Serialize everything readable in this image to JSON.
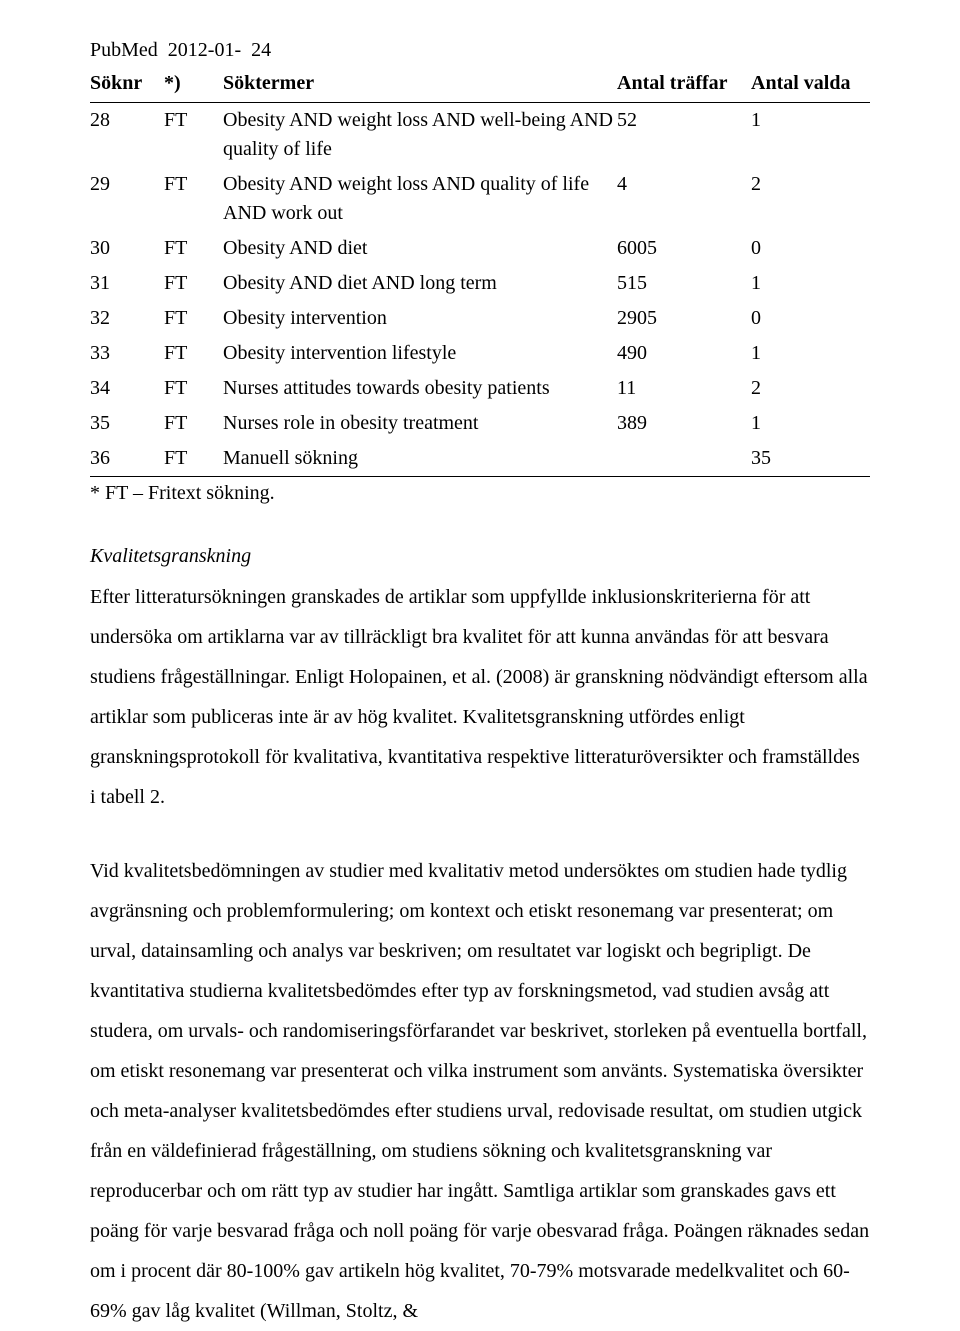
{
  "header": {
    "db": "PubMed",
    "date": "2012-01-",
    "day": "24"
  },
  "columns": {
    "soknr": "Söknr",
    "mark": "*)",
    "terms": "Söktermer",
    "hits": "Antal träffar",
    "sel": "Antal valda"
  },
  "rows": [
    {
      "n": "28",
      "m": "FT",
      "t": "Obesity AND weight loss AND well-being AND quality of life",
      "h": "52",
      "v": "1"
    },
    {
      "n": "29",
      "m": "FT",
      "t": "Obesity AND weight loss AND quality of life AND work out",
      "h": "4",
      "v": "2"
    },
    {
      "n": "30",
      "m": "FT",
      "t": "Obesity AND diet",
      "h": "6005",
      "v": "0"
    },
    {
      "n": "31",
      "m": "FT",
      "t": "Obesity AND diet AND long term",
      "h": "515",
      "v": "1"
    },
    {
      "n": "32",
      "m": "FT",
      "t": "Obesity intervention",
      "h": "2905",
      "v": "0"
    },
    {
      "n": "33",
      "m": "FT",
      "t": "Obesity intervention lifestyle",
      "h": "490",
      "v": "1"
    },
    {
      "n": "34",
      "m": "FT",
      "t": "Nurses attitudes towards obesity patients",
      "h": "11",
      "v": "2"
    },
    {
      "n": "35",
      "m": "FT",
      "t": "Nurses role in obesity treatment",
      "h": "389",
      "v": "1"
    },
    {
      "n": "36",
      "m": "FT",
      "t": "Manuell sökning",
      "h": "",
      "v": "35"
    }
  ],
  "footnote": "* FT – Fritext sökning.",
  "section_title": "Kvalitetsgranskning",
  "para1": "Efter litteratursökningen granskades de artiklar som uppfyllde inklusionskriterierna för att undersöka om artiklarna var av tillräckligt bra kvalitet för att kunna användas för att besvara studiens frågeställningar. Enligt Holopainen, et al. (2008) är granskning nödvändigt eftersom alla artiklar som publiceras inte är av hög kvalitet. Kvalitetsgranskning utfördes enligt granskningsprotokoll för kvalitativa, kvantitativa respektive litteraturöversikter och framställdes i tabell 2.",
  "para2": "Vid kvalitetsbedömningen av studier med kvalitativ metod undersöktes om studien hade tydlig avgränsning och problemformulering; om kontext och etiskt resonemang var presenterat; om urval, datainsamling och analys var beskriven; om resultatet var logiskt och begripligt. De kvantitativa studierna kvalitetsbedömdes efter typ av forskningsmetod, vad studien avsåg att studera, om urvals- och randomiseringsförfarandet var beskrivet, storleken på eventuella bortfall, om etiskt resonemang var presenterat och vilka instrument som använts. Systematiska översikter och meta-analyser kvalitetsbedömdes efter studiens urval, redovisade resultat, om studien utgick från en väldefinierad frågeställning, om studiens sökning och kvalitetsgranskning var reproducerbar och om rätt typ av studier har ingått. Samtliga artiklar som granskades gavs ett poäng för varje besvarad fråga och noll poäng för varje obesvarad fråga. Poängen räknades sedan om i procent där 80-100% gav artikeln hög kvalitet, 70-79% motsvarade medelkvalitet och 60-69% gav låg kvalitet (Willman, Stoltz, &"
}
